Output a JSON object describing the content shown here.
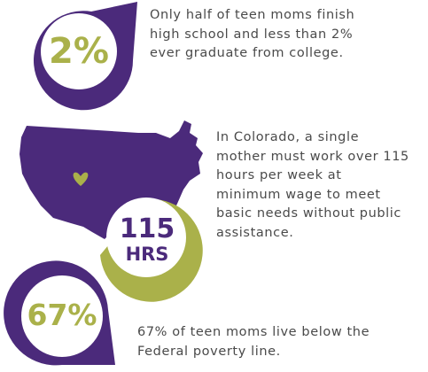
{
  "colors": {
    "purple": "#4b2a7b",
    "green": "#aab14a",
    "text": "#4a4a4a",
    "white": "#ffffff"
  },
  "stats": [
    {
      "value": "2%",
      "text": "Only half of teen moms finish\nhigh school and less than 2%\never graduate from college."
    },
    {
      "value_line1": "115",
      "value_line2": "HRS",
      "text": "In Colorado, a single\nmother must work over 115\nhours per week at\nminimum wage to meet\nbasic needs without public\nassistance."
    },
    {
      "value": "67%",
      "text": "67% of teen moms live below the\nFederal poverty line."
    }
  ],
  "icons": {
    "map": "usa-map-icon",
    "heart": "heart-icon"
  }
}
